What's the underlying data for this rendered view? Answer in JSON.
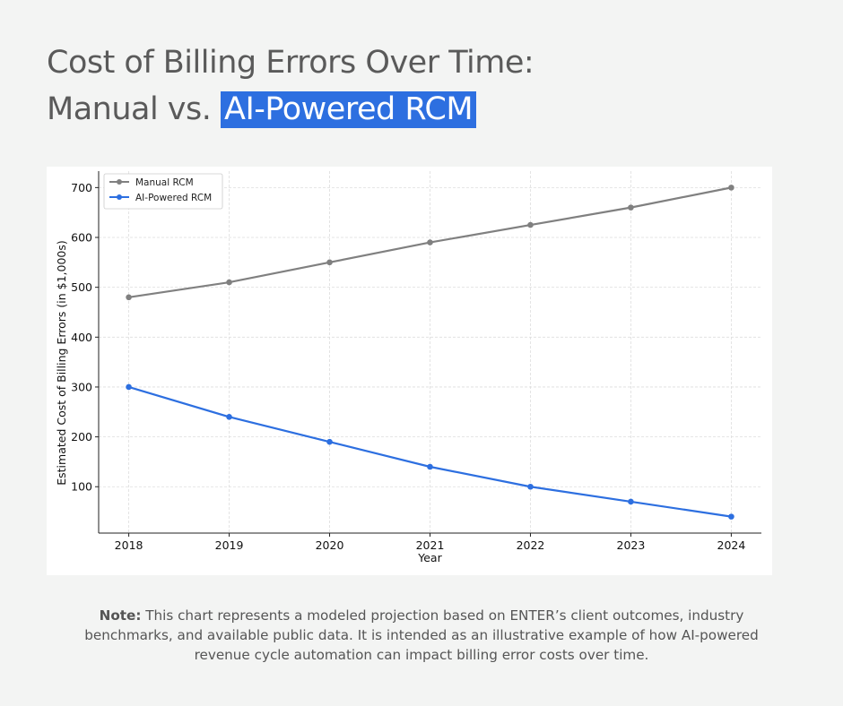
{
  "title": {
    "line1": "Cost of Billing Errors Over Time:",
    "line2_plain": "Manual vs. ",
    "line2_highlight": "AI-Powered RCM"
  },
  "colors": {
    "background": "#f3f4f3",
    "highlight": "#2d6fe0",
    "manual_series": "#808080",
    "ai_series": "#2d6fe0"
  },
  "chart_data": {
    "type": "line",
    "x": [
      2018,
      2019,
      2020,
      2021,
      2022,
      2023,
      2024
    ],
    "series": [
      {
        "name": "Manual RCM",
        "values": [
          480,
          510,
          550,
          590,
          625,
          660,
          700
        ],
        "color": "#808080"
      },
      {
        "name": "AI-Powered RCM",
        "values": [
          300,
          240,
          190,
          140,
          100,
          70,
          40
        ],
        "color": "#2d6fe0"
      }
    ],
    "xlabel": "Year",
    "ylabel": "Estimated Cost of Billing Errors (in $1,000s)",
    "xticks": [
      "2018",
      "2019",
      "2020",
      "2021",
      "2022",
      "2023",
      "2024"
    ],
    "yticks": [
      100,
      200,
      300,
      400,
      500,
      600,
      700
    ],
    "xlim": [
      2017.7,
      2024.3
    ],
    "ylim": [
      7,
      733
    ],
    "grid": true,
    "legend_position": "top-left"
  },
  "note": {
    "label": "Note:",
    "text": " This chart represents a modeled projection based on ENTER’s client outcomes, industry benchmarks, and available public data. It is intended as an illustrative example of how AI-powered revenue cycle automation can impact billing error costs over time."
  }
}
